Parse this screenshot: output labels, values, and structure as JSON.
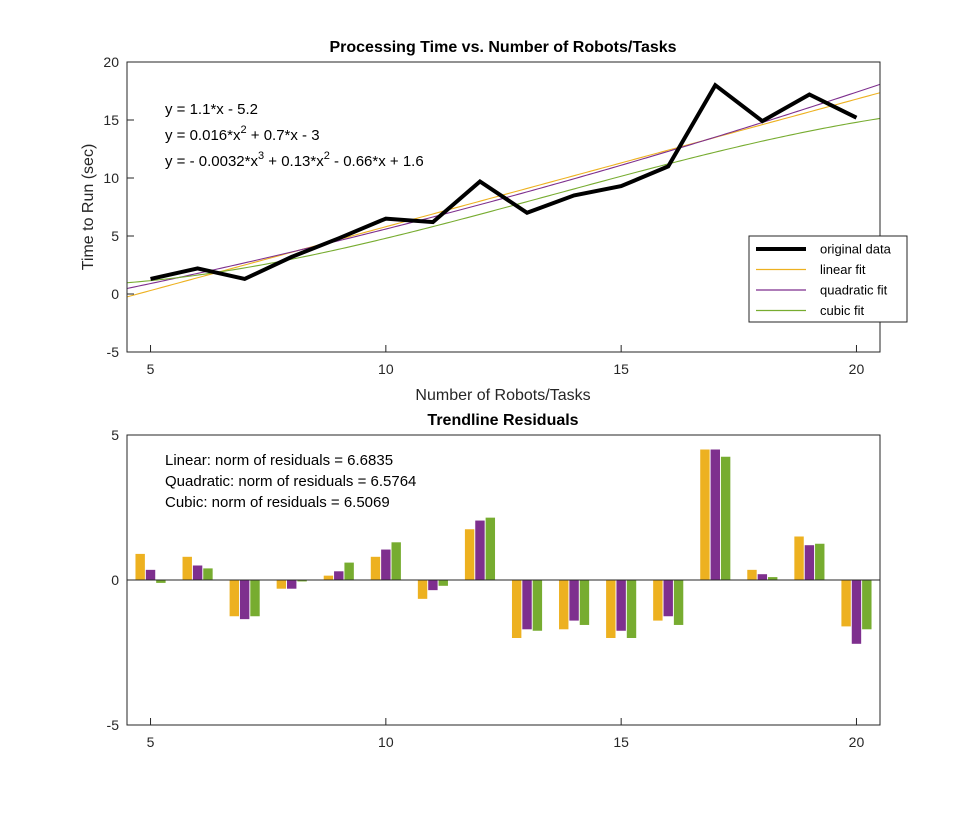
{
  "chart_data": [
    {
      "type": "line",
      "title": "Processing Time vs. Number of Robots/Tasks",
      "xlabel": "Number of Robots/Tasks",
      "ylabel": "Time to Run (sec)",
      "xlim": [
        4.5,
        20.5
      ],
      "ylim": [
        -5,
        20
      ],
      "xticks": [
        5,
        10,
        15,
        20
      ],
      "yticks": [
        -5,
        0,
        5,
        10,
        15,
        20
      ],
      "x": [
        5,
        6,
        7,
        8,
        9,
        10,
        11,
        12,
        13,
        14,
        15,
        16,
        17,
        18,
        19,
        20
      ],
      "series": [
        {
          "name": "original data",
          "color": "#000000",
          "values": [
            1.3,
            2.2,
            1.3,
            3.2,
            4.8,
            6.5,
            6.2,
            9.7,
            7.0,
            8.5,
            9.3,
            11.0,
            18.0,
            14.9,
            17.2,
            15.2
          ]
        },
        {
          "name": "linear fit",
          "color": "#EDB120",
          "coefficients": [
            1.1,
            -5.2
          ]
        },
        {
          "name": "quadratic fit",
          "color": "#7E2F8E",
          "coefficients": [
            0.016,
            0.7,
            -3
          ]
        },
        {
          "name": "cubic fit",
          "color": "#77AC30",
          "coefficients": [
            -0.0032,
            0.13,
            -0.66,
            1.6
          ]
        }
      ],
      "equations": [
        {
          "pre": "y = 1.1*x - 5.2",
          "terms": []
        },
        {
          "pre": "y = 0.016*x",
          "terms": [
            {
              "sup": "2",
              "post": " + 0.7*x - 3"
            }
          ]
        },
        {
          "pre": "y = - 0.0032*x",
          "terms": [
            {
              "sup": "3",
              "post": " + 0.13*x"
            },
            {
              "sup": "2",
              "post": " - 0.66*x + 1.6"
            }
          ]
        }
      ],
      "legend": {
        "location": "right"
      }
    },
    {
      "type": "bar",
      "title": "Trendline Residuals",
      "xlim": [
        4.5,
        20.5
      ],
      "ylim": [
        -5,
        5
      ],
      "xticks": [
        5,
        10,
        15,
        20
      ],
      "yticks": [
        -5,
        0,
        5
      ],
      "x": [
        5,
        6,
        7,
        8,
        9,
        10,
        11,
        12,
        13,
        14,
        15,
        16,
        17,
        18,
        19,
        20
      ],
      "series": [
        {
          "color": "#EDB120",
          "values": [
            0.9,
            0.8,
            -1.25,
            -0.3,
            0.15,
            0.8,
            -0.65,
            1.75,
            -2.0,
            -1.7,
            -2.0,
            -1.4,
            4.5,
            0.35,
            1.5,
            -1.6
          ]
        },
        {
          "color": "#7E2F8E",
          "values": [
            0.35,
            0.5,
            -1.35,
            -0.3,
            0.3,
            1.05,
            -0.35,
            2.05,
            -1.7,
            -1.4,
            -1.75,
            -1.25,
            4.5,
            0.2,
            1.2,
            -2.2
          ]
        },
        {
          "color": "#77AC30",
          "values": [
            -0.1,
            0.4,
            -1.25,
            -0.05,
            0.6,
            1.3,
            -0.2,
            2.15,
            -1.75,
            -1.55,
            -2.0,
            -1.55,
            4.25,
            0.1,
            1.25,
            -1.7
          ]
        }
      ],
      "annotations": [
        "Linear: norm of residuals = 6.6835",
        "Quadratic: norm of residuals = 6.5764",
        "Cubic: norm of residuals = 6.5069"
      ]
    }
  ]
}
